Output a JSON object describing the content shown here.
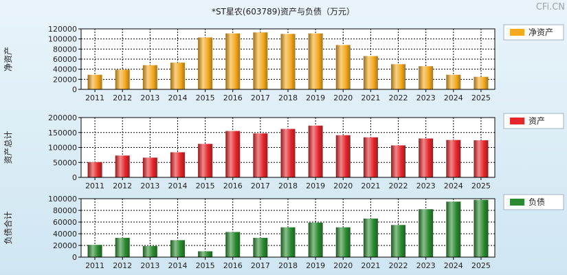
{
  "header": {
    "title": "*ST星农(603789)资产与负债（万元）",
    "watermark": "CFi.CN"
  },
  "colors": {
    "net_assets": "#f4a91f",
    "assets": "#e5262b",
    "liabilities": "#2a8a2f"
  },
  "chart_data": [
    {
      "type": "bar",
      "title": "",
      "ylabel": "净资产",
      "legend": "净资产",
      "categories": [
        "2011",
        "2012",
        "2013",
        "2014",
        "2015",
        "2016",
        "2017",
        "2018",
        "2019",
        "2020",
        "2021",
        "2022",
        "2023",
        "2024",
        "2025"
      ],
      "values": [
        29000,
        39000,
        48000,
        53000,
        103000,
        111000,
        113000,
        110000,
        111000,
        88000,
        66000,
        50000,
        46000,
        29000,
        25000
      ],
      "ylim": [
        0,
        120000
      ],
      "yticks": [
        "0",
        "20000",
        "40000",
        "60000",
        "80000",
        "100000",
        "120000"
      ],
      "yticks_values": [
        0,
        20000,
        40000,
        60000,
        80000,
        100000,
        120000
      ],
      "grid": true
    },
    {
      "type": "bar",
      "title": "",
      "ylabel": "资产总计",
      "legend": "资产",
      "categories": [
        "2011",
        "2012",
        "2013",
        "2014",
        "2015",
        "2016",
        "2017",
        "2018",
        "2019",
        "2020",
        "2021",
        "2022",
        "2023",
        "2024",
        "2025"
      ],
      "values": [
        51000,
        73000,
        66000,
        84000,
        112000,
        155000,
        147000,
        162000,
        173000,
        141000,
        134000,
        107000,
        130000,
        125000,
        124000
      ],
      "ylim": [
        0,
        200000
      ],
      "yticks": [
        "0",
        "50000",
        "100000",
        "150000",
        "200000"
      ],
      "yticks_values": [
        0,
        50000,
        100000,
        150000,
        200000
      ],
      "grid": true
    },
    {
      "type": "bar",
      "title": "",
      "ylabel": "负债合计",
      "legend": "负债",
      "categories": [
        "2011",
        "2012",
        "2013",
        "2014",
        "2015",
        "2016",
        "2017",
        "2018",
        "2019",
        "2020",
        "2021",
        "2022",
        "2023",
        "2024",
        "2025"
      ],
      "values": [
        21000,
        33000,
        19000,
        29000,
        10000,
        43000,
        33000,
        51000,
        59000,
        51000,
        66000,
        55000,
        82000,
        95000,
        98000
      ],
      "ylim": [
        0,
        100000
      ],
      "yticks": [
        "0",
        "20000",
        "40000",
        "60000",
        "80000",
        "100000"
      ],
      "yticks_values": [
        0,
        20000,
        40000,
        60000,
        80000,
        100000
      ],
      "grid": true
    }
  ]
}
